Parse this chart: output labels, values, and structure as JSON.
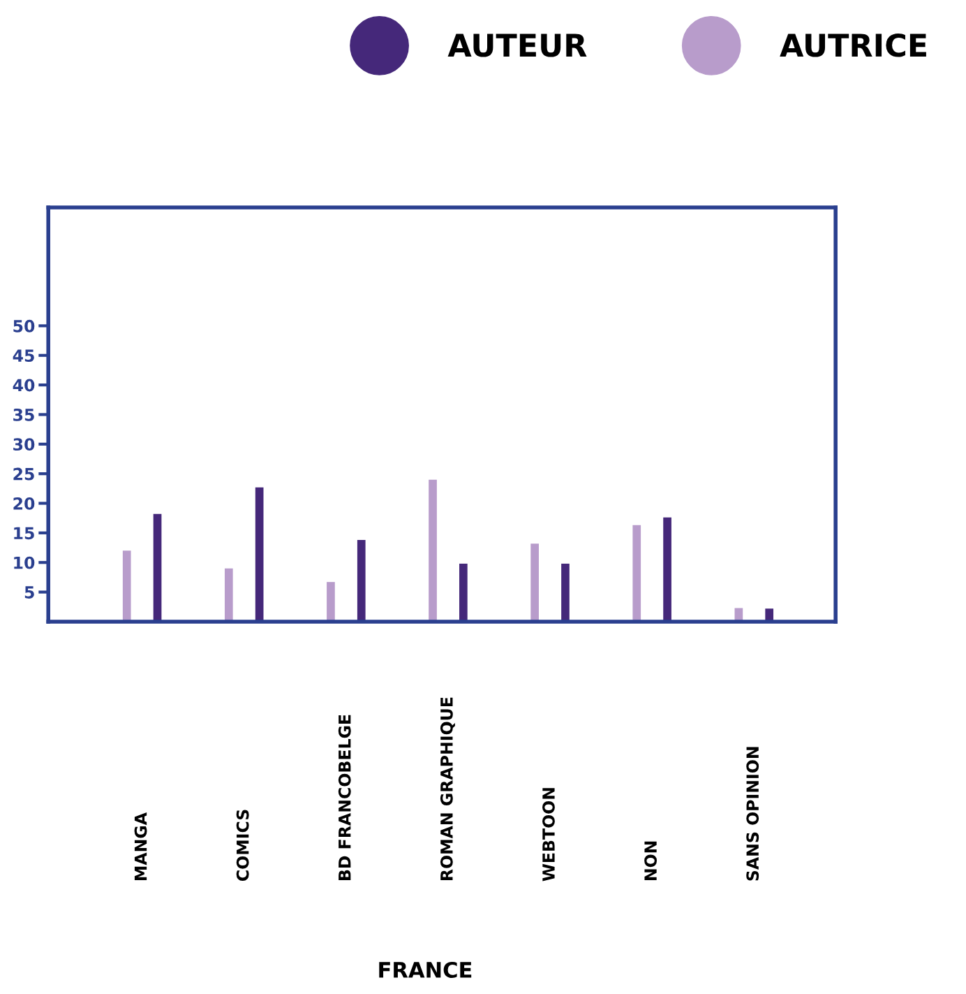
{
  "chart_data": {
    "type": "bar",
    "annotations": [
      "FRANCE"
    ],
    "categories": [
      "MANGA",
      "COMICS",
      "BD FRANCOBELGE",
      "ROMAN GRAPHIQUE",
      "WEBTOON",
      "NON",
      "SANS OPINION"
    ],
    "series": [
      {
        "name": "AUTRICE",
        "color": "#b89ccb",
        "values": [
          12,
          9,
          6.7,
          24,
          13.2,
          16.3,
          2.3
        ]
      },
      {
        "name": "AUTEUR",
        "color": "#45287a",
        "values": [
          18.2,
          22.7,
          13.8,
          9.8,
          9.8,
          17.6,
          2.2
        ]
      }
    ],
    "ylim": [
      0,
      70
    ],
    "yticks": [
      5,
      10,
      15,
      20,
      25,
      30,
      35,
      40,
      45,
      50
    ],
    "grid": false,
    "legend": "top right"
  }
}
